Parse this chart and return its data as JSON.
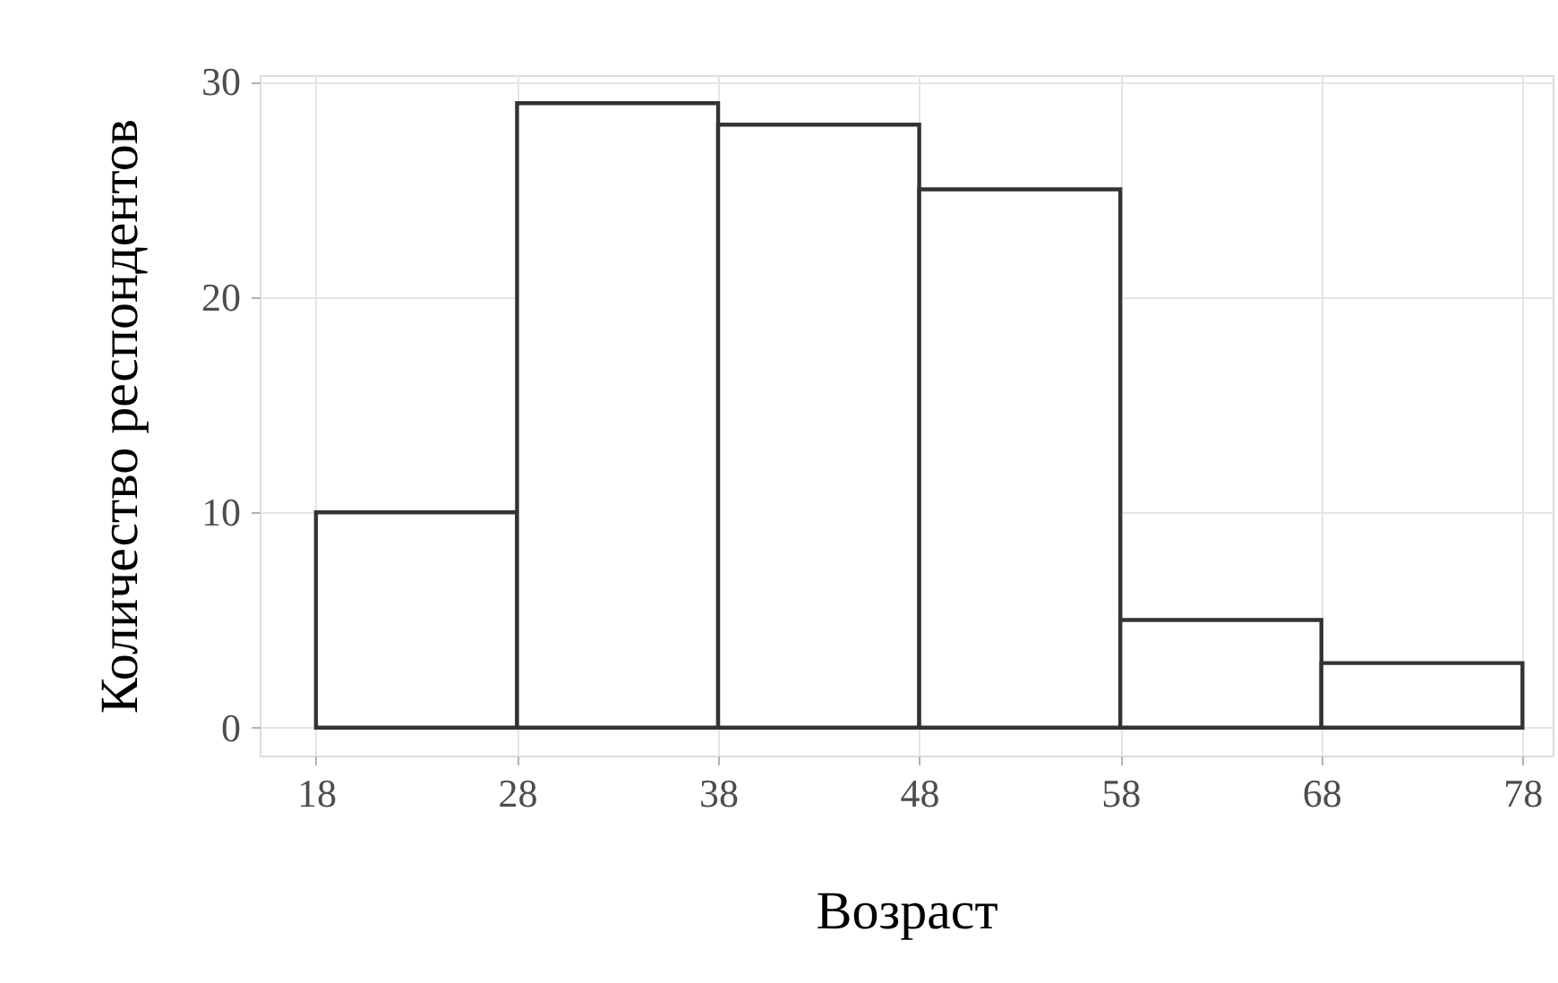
{
  "chart_data": {
    "type": "histogram",
    "xlabel": "Возраст",
    "ylabel": "Количество респондентов",
    "bins": [
      18,
      28,
      38,
      48,
      58,
      68,
      78
    ],
    "values": [
      10,
      29,
      28,
      25,
      5,
      3
    ],
    "color": "#ffffff",
    "xlim": [
      15.2,
      79.5
    ],
    "xticks": [
      18,
      28,
      38,
      48,
      58,
      68,
      78
    ],
    "ylim": [
      -1.3,
      30.3
    ],
    "yticks": [
      0,
      10,
      20,
      30
    ],
    "grid": true
  }
}
